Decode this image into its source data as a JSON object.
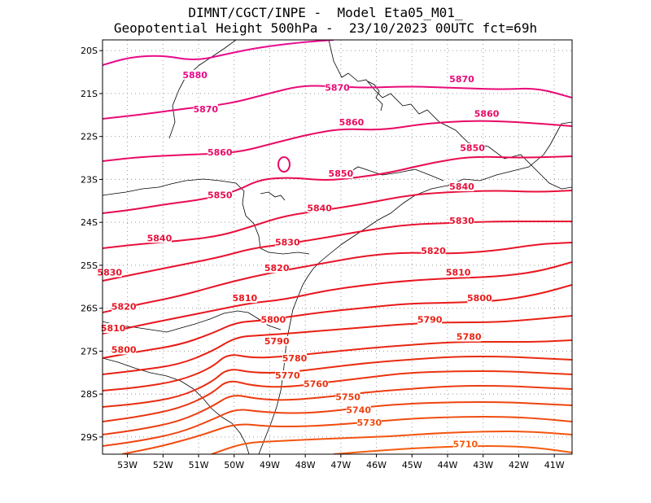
{
  "title": {
    "line1": "DIMNT/CGCT/INPE -  Model Eta05_M01_",
    "line2": "Geopotential Height 500hPa -  23/10/2023 00UTC fct=69h"
  },
  "axes": {
    "x_ticks": [
      "53W",
      "52W",
      "51W",
      "50W",
      "49W",
      "48W",
      "47W",
      "46W",
      "45W",
      "44W",
      "43W",
      "42W",
      "41W"
    ],
    "y_ticks": [
      "20S",
      "21S",
      "22S",
      "23S",
      "24S",
      "25S",
      "26S",
      "27S",
      "28S",
      "29S"
    ],
    "lon_range": [
      -53.7,
      -40.5
    ],
    "lat_range": [
      -29.4,
      -19.75
    ],
    "grid": "dotted"
  },
  "chart_data": {
    "type": "contour",
    "variable": "Geopotential Height 500hPa",
    "contour_interval": 10,
    "contour_levels": [
      5710,
      5720,
      5730,
      5740,
      5750,
      5760,
      5770,
      5780,
      5790,
      5800,
      5810,
      5820,
      5830,
      5840,
      5850,
      5860,
      5870,
      5880
    ],
    "labels": [
      {
        "text": "5880",
        "lon": -51.1,
        "lat": -20.6
      },
      {
        "text": "5870",
        "lon": -47.1,
        "lat": -20.9
      },
      {
        "text": "5870",
        "lon": -43.6,
        "lat": -20.7
      },
      {
        "text": "5870",
        "lon": -50.8,
        "lat": -21.4
      },
      {
        "text": "5860",
        "lon": -46.7,
        "lat": -21.7
      },
      {
        "text": "5860",
        "lon": -42.9,
        "lat": -21.5
      },
      {
        "text": "5860",
        "lon": -50.4,
        "lat": -22.4
      },
      {
        "text": "5850",
        "lon": -43.3,
        "lat": -22.3
      },
      {
        "text": "5850",
        "lon": -47.0,
        "lat": -22.9
      },
      {
        "text": "5850",
        "lon": -50.4,
        "lat": -23.4
      },
      {
        "text": "5840",
        "lon": -43.6,
        "lat": -23.2
      },
      {
        "text": "5840",
        "lon": -47.6,
        "lat": -23.7
      },
      {
        "text": "5840",
        "lon": -52.1,
        "lat": -24.4
      },
      {
        "text": "5830",
        "lon": -43.6,
        "lat": -24.0
      },
      {
        "text": "5830",
        "lon": -48.5,
        "lat": -24.5
      },
      {
        "text": "5830",
        "lon": -53.5,
        "lat": -25.2
      },
      {
        "text": "5820",
        "lon": -44.4,
        "lat": -24.7
      },
      {
        "text": "5820",
        "lon": -48.8,
        "lat": -25.1
      },
      {
        "text": "5820",
        "lon": -53.1,
        "lat": -26.0
      },
      {
        "text": "5810",
        "lon": -43.7,
        "lat": -25.2
      },
      {
        "text": "5810",
        "lon": -49.7,
        "lat": -25.8
      },
      {
        "text": "5810",
        "lon": -53.4,
        "lat": -26.5
      },
      {
        "text": "5800",
        "lon": -43.1,
        "lat": -25.8
      },
      {
        "text": "5800",
        "lon": -48.9,
        "lat": -26.3
      },
      {
        "text": "5800",
        "lon": -53.1,
        "lat": -27.0
      },
      {
        "text": "5790",
        "lon": -44.5,
        "lat": -26.3
      },
      {
        "text": "5790",
        "lon": -48.8,
        "lat": -26.8
      },
      {
        "text": "5780",
        "lon": -43.4,
        "lat": -26.7
      },
      {
        "text": "5780",
        "lon": -48.3,
        "lat": -27.2
      },
      {
        "text": "5770",
        "lon": -48.5,
        "lat": -27.6
      },
      {
        "text": "5760",
        "lon": -47.7,
        "lat": -27.8
      },
      {
        "text": "5750",
        "lon": -46.8,
        "lat": -28.1
      },
      {
        "text": "5740",
        "lon": -46.5,
        "lat": -28.4
      },
      {
        "text": "5730",
        "lon": -46.2,
        "lat": -28.7
      },
      {
        "text": "5710",
        "lon": -43.5,
        "lat": -29.2
      }
    ]
  },
  "colors": {
    "5880": "#e80a8c",
    "5870": "#e80a78",
    "5860": "#e80a64",
    "5850": "#e80a50",
    "5840": "#e8103c",
    "5830": "#e81230",
    "5820": "#e81428",
    "5810": "#e81620",
    "5800": "#e81a18",
    "5790": "#e82014",
    "5780": "#e82612",
    "5770": "#e82c10",
    "5760": "#ea3410",
    "5750": "#ec3c10",
    "5740": "#ee4410",
    "5730": "#f04c10",
    "5720": "#f25410",
    "5710": "#f45c10"
  }
}
